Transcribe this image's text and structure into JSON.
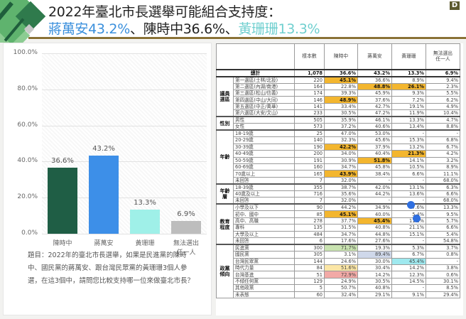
{
  "header": {
    "title_line1": "2022年臺北市長選舉可能組合支持度：",
    "title_line2_parts": [
      "蔣萬安43.2%",
      "、",
      "陳時中36.6%",
      "、",
      "黃珊珊13.3%"
    ],
    "logo": "D"
  },
  "chart_data": {
    "type": "bar",
    "title": "",
    "categories": [
      "陳時中",
      "蔣萬安",
      "黃珊珊",
      "無法選出任一人"
    ],
    "category_lines": [
      [
        "陳時中"
      ],
      [
        "蔣萬安"
      ],
      [
        "黃珊珊"
      ],
      [
        "無法選出",
        "任一人"
      ]
    ],
    "values": [
      36.6,
      43.2,
      13.3,
      6.9
    ],
    "value_labels": [
      "36.6%",
      "43.2%",
      "13.3%",
      "6.9%"
    ],
    "colors": [
      "#1f5e45",
      "#3d8fe8",
      "#9ff0e8",
      "#bdbdbd"
    ],
    "xlabel": "",
    "ylabel": "",
    "ylim": [
      0,
      100
    ],
    "yticks": [
      "100.0%",
      "80.0%",
      "60.0%",
      "40.0%",
      "20.0%",
      "0.0%"
    ],
    "grid": true,
    "legend": "none"
  },
  "question": "題目：2022年的臺北市長選舉，如果是民進黨的陳時中、國民黨的蔣萬安、跟台灣民眾黨的黃珊珊3個人參選，在這3個中，請問您比較支持哪一位來做臺北市長？",
  "table": {
    "headers": [
      "樣本數",
      "陳時中",
      "蔣萬安",
      "黃珊珊",
      "無法選出任一人"
    ],
    "header_last_lines": [
      "無法選出",
      "任一人"
    ],
    "total": {
      "label": "總計",
      "values": [
        "1,078",
        "36.6%",
        "43.2%",
        "13.3%",
        "6.9%"
      ]
    },
    "groups": [
      {
        "name": "議員選區",
        "name_lines": [
          "議員",
          "選區"
        ],
        "rows": [
          {
            "label": "第一選區(士林/北投)",
            "values": [
              "220",
              "45.1%",
              "36.6%",
              "8.9%",
              "9.4%"
            ],
            "hl": [
              null,
              "gold",
              null,
              null,
              null
            ]
          },
          {
            "label": "第二選區(內湖/南港)",
            "values": [
              "164",
              "22.8%",
              "48.8%",
              "26.1%",
              "2.3%"
            ],
            "hl": [
              null,
              null,
              "gold",
              "gold",
              null
            ]
          },
          {
            "label": "第三選區(松山/信義)",
            "values": [
              "174",
              "39.3%",
              "45.9%",
              "9.3%",
              "5.5%"
            ],
            "hl": [
              null,
              null,
              null,
              null,
              null
            ]
          },
          {
            "label": "第四選區(中山/大同)",
            "values": [
              "146",
              "48.9%",
              "37.6%",
              "7.2%",
              "6.2%"
            ],
            "hl": [
              null,
              "gold",
              null,
              null,
              null
            ]
          },
          {
            "label": "第五選區(中正/萬華)",
            "values": [
              "141",
              "33.4%",
              "42.7%",
              "19.1%",
              "4.9%"
            ],
            "hl": [
              null,
              null,
              null,
              null,
              null
            ]
          },
          {
            "label": "第六選區(大安/文山)",
            "values": [
              "233",
              "30.5%",
              "47.2%",
              "11.9%",
              "10.4%"
            ],
            "hl": [
              null,
              null,
              null,
              null,
              null
            ]
          }
        ]
      },
      {
        "name": "性別",
        "name_lines": [
          "性別"
        ],
        "rows": [
          {
            "label": "男性",
            "values": [
              "505",
              "35.9%",
              "46.1%",
              "13.3%",
              "4.7%"
            ],
            "hl": [
              null,
              null,
              null,
              null,
              null
            ]
          },
          {
            "label": "女性",
            "values": [
              "573",
              "37.2%",
              "40.6%",
              "13.4%",
              "8.8%"
            ],
            "hl": [
              null,
              null,
              null,
              null,
              null
            ]
          }
        ]
      },
      {
        "name": "年齡",
        "name_lines": [
          "年齡"
        ],
        "rows": [
          {
            "label": "18-19歲",
            "values": [
              "25",
              "47.0%",
              "53.0%",
              "-",
              "-"
            ],
            "hl": [
              null,
              null,
              null,
              null,
              null
            ]
          },
          {
            "label": "20-29歲",
            "values": [
              "140",
              "32.3%",
              "45.6%",
              "15.3%",
              "6.8%"
            ],
            "hl": [
              null,
              null,
              null,
              null,
              null
            ]
          },
          {
            "label": "30-39歲",
            "values": [
              "190",
              "42.2%",
              "37.9%",
              "13.2%",
              "6.7%"
            ],
            "hl": [
              null,
              "gold",
              null,
              null,
              null
            ]
          },
          {
            "label": "40-49歲",
            "values": [
              "200",
              "34.0%",
              "40.4%",
              "21.3%",
              "4.2%"
            ],
            "hl": [
              null,
              null,
              null,
              "gold",
              null
            ]
          },
          {
            "label": "50-59歲",
            "values": [
              "191",
              "30.9%",
              "51.8%",
              "14.1%",
              "3.2%"
            ],
            "hl": [
              null,
              null,
              "gold",
              null,
              null
            ]
          },
          {
            "label": "60-69歲",
            "values": [
              "160",
              "34.7%",
              "45.8%",
              "10.5%",
              "8.9%"
            ],
            "hl": [
              null,
              null,
              null,
              null,
              null
            ]
          },
          {
            "label": "70歲以上",
            "values": [
              "165",
              "43.9%",
              "38.4%",
              "6.6%",
              "11.1%"
            ],
            "hl": [
              null,
              "gold",
              null,
              null,
              null
            ]
          },
          {
            "label": "未回答",
            "values": [
              "7",
              "32.0%",
              "-",
              "-",
              "68.0%"
            ],
            "hl": [
              null,
              null,
              null,
              null,
              null
            ]
          }
        ]
      },
      {
        "name": "年齡層",
        "name_lines": [
          "年齡",
          "層"
        ],
        "rows": [
          {
            "label": "18-39歲",
            "values": [
              "355",
              "38.7%",
              "42.0%",
              "13.1%",
              "6.3%"
            ],
            "hl": [
              null,
              null,
              null,
              null,
              null
            ]
          },
          {
            "label": "40歲及以上",
            "values": [
              "716",
              "35.6%",
              "44.2%",
              "13.6%",
              "6.6%"
            ],
            "hl": [
              null,
              null,
              null,
              null,
              null
            ]
          },
          {
            "label": "未回答",
            "values": [
              "7",
              "32.0%",
              "-",
              "-",
              "68.0%"
            ],
            "hl": [
              null,
              null,
              null,
              null,
              null
            ]
          }
        ]
      },
      {
        "name": "教育程度",
        "name_lines": [
          "教育",
          "程度"
        ],
        "rows": [
          {
            "label": "小學及以下",
            "values": [
              "90",
              "44.2%",
              "34.9%",
              "7.6%",
              "13.3%"
            ],
            "hl": [
              null,
              null,
              null,
              null,
              null
            ]
          },
          {
            "label": "初中、國中",
            "values": [
              "85",
              "45.1%",
              "40.0%",
              "5.4%",
              "9.5%"
            ],
            "hl": [
              null,
              "gold",
              null,
              null,
              null
            ]
          },
          {
            "label": "高中、高職",
            "values": [
              "278",
              "37.7%",
              "45.4%",
              "11.2%",
              "5.7%"
            ],
            "hl": [
              null,
              null,
              "gold",
              null,
              null
            ]
          },
          {
            "label": "專科",
            "values": [
              "135",
              "31.5%",
              "40.8%",
              "21.1%",
              "6.6%"
            ],
            "hl": [
              null,
              null,
              null,
              null,
              null
            ]
          },
          {
            "label": "大學及以上",
            "values": [
              "484",
              "34.7%",
              "44.8%",
              "15.1%",
              "5.4%"
            ],
            "hl": [
              null,
              null,
              null,
              null,
              null
            ]
          },
          {
            "label": "未回答",
            "values": [
              "6",
              "17.6%",
              "27.6%",
              "-",
              "54.8%"
            ],
            "hl": [
              null,
              null,
              null,
              null,
              null
            ]
          }
        ]
      },
      {
        "name": "政黨傾向",
        "name_lines": [
          "政黨",
          "傾向"
        ],
        "rows": [
          {
            "label": "民進黨",
            "values": [
              "300",
              "71.7%",
              "19.3%",
              "5.3%",
              "3.7%"
            ],
            "hl": [
              null,
              "green",
              null,
              null,
              null
            ]
          },
          {
            "label": "國民黨",
            "values": [
              "305",
              "3.1%",
              "89.4%",
              "6.7%",
              "0.8%"
            ],
            "hl": [
              null,
              null,
              "blue",
              null,
              null
            ]
          },
          {
            "label": "台灣民眾黨",
            "values": [
              "144",
              "24.6%",
              "30.0%",
              "45.4%",
              "-"
            ],
            "hl": [
              null,
              null,
              null,
              "cyan",
              null
            ]
          },
          {
            "label": "時代力量",
            "values": [
              "84",
              "51.6%",
              "30.4%",
              "14.2%",
              "3.8%"
            ],
            "hl": [
              null,
              "yellow",
              null,
              null,
              null
            ]
          },
          {
            "label": "台灣基進",
            "values": [
              "51",
              "72.9%",
              "14.2%",
              "12.3%",
              "0.6%"
            ],
            "hl": [
              null,
              "red",
              null,
              null,
              null
            ]
          },
          {
            "label": "不傾任何黨",
            "values": [
              "129",
              "24.9%",
              "30.5%",
              "14.5%",
              "30.1%"
            ],
            "hl": [
              null,
              null,
              null,
              null,
              null
            ]
          },
          {
            "label": "其他政黨",
            "values": [
              "5",
              "50.7%",
              "40.8%",
              "-",
              "8.5%"
            ],
            "hl": [
              null,
              null,
              null,
              null,
              null
            ]
          },
          {
            "label": "未表態",
            "values": [
              "60",
              "32.4%",
              "29.1%",
              "9.1%",
              "29.4%"
            ],
            "hl": [
              null,
              null,
              null,
              null,
              null
            ]
          }
        ]
      }
    ]
  }
}
